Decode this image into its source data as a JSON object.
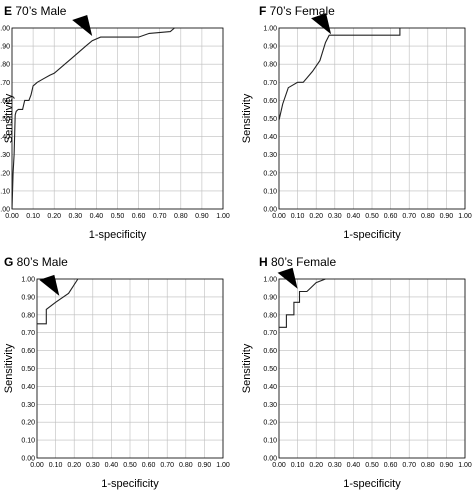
{
  "chart_data": [
    {
      "panel": "E",
      "title": "70’s Male",
      "type": "line",
      "xlabel": "1-specificity",
      "ylabel": "Sensitivity",
      "xlim": [
        0,
        1
      ],
      "ylim": [
        0,
        1
      ],
      "xticks": [
        "0.00",
        "0.10",
        "0.20",
        "0.30",
        "0.40",
        "0.50",
        "0.60",
        "0.70",
        "0.80",
        "0.90",
        "1.00"
      ],
      "yticks": [
        "0.00",
        "0.10",
        "0.20",
        "0.30",
        "0.40",
        "0.50",
        "0.60",
        "0.70",
        "0.80",
        "0.90",
        "1.00"
      ],
      "grid": true,
      "x": [
        0,
        0.005,
        0.01,
        0.015,
        0.02,
        0.03,
        0.05,
        0.06,
        0.08,
        0.09,
        0.1,
        0.12,
        0.15,
        0.18,
        0.2,
        0.25,
        0.28,
        0.3,
        0.35,
        0.38,
        0.42,
        0.5,
        0.55,
        0.6,
        0.65,
        0.75,
        0.77
      ],
      "y": [
        0,
        0.2,
        0.3,
        0.52,
        0.54,
        0.55,
        0.55,
        0.6,
        0.6,
        0.63,
        0.68,
        0.7,
        0.72,
        0.74,
        0.75,
        0.8,
        0.83,
        0.85,
        0.9,
        0.93,
        0.95,
        0.95,
        0.95,
        0.95,
        0.97,
        0.98,
        1.0
      ],
      "annotation": {
        "type": "arrow",
        "x": 0.38,
        "y": 0.95
      }
    },
    {
      "panel": "F",
      "title": "70’s Female",
      "type": "line",
      "xlabel": "1-specificity",
      "ylabel": "Sensitivity",
      "xlim": [
        0,
        1
      ],
      "ylim": [
        0,
        1
      ],
      "xticks": [
        "0.00",
        "0.10",
        "0.20",
        "0.30",
        "0.40",
        "0.50",
        "0.60",
        "0.70",
        "0.80",
        "0.90",
        "1.00"
      ],
      "yticks": [
        "0.00",
        "0.10",
        "0.20",
        "0.30",
        "0.40",
        "0.50",
        "0.60",
        "0.70",
        "0.80",
        "0.90",
        "1.00"
      ],
      "grid": true,
      "x": [
        0,
        0.02,
        0.05,
        0.1,
        0.13,
        0.18,
        0.22,
        0.25,
        0.27,
        0.28,
        0.3,
        0.65,
        0.65
      ],
      "y": [
        0.49,
        0.58,
        0.67,
        0.7,
        0.7,
        0.76,
        0.82,
        0.92,
        0.96,
        0.96,
        0.96,
        0.96,
        1.0
      ],
      "annotation": {
        "type": "arrow",
        "x": 0.28,
        "y": 0.96
      }
    },
    {
      "panel": "G",
      "title": "80’s Male",
      "type": "line",
      "xlabel": "1-specificity",
      "ylabel": "Sensitivity",
      "xlim": [
        0,
        1
      ],
      "ylim": [
        0,
        1
      ],
      "xticks": [
        "0.00",
        "0.10",
        "0.20",
        "0.30",
        "0.40",
        "0.50",
        "0.60",
        "0.70",
        "0.80",
        "0.90",
        "1.00"
      ],
      "yticks": [
        "0.00",
        "0.10",
        "0.20",
        "0.30",
        "0.40",
        "0.50",
        "0.60",
        "0.70",
        "0.80",
        "0.90",
        "1.00"
      ],
      "grid": true,
      "x": [
        0,
        0.05,
        0.05,
        0.1,
        0.17,
        0.22
      ],
      "y": [
        0.75,
        0.75,
        0.83,
        0.87,
        0.92,
        1.0
      ],
      "annotation": {
        "type": "arrow",
        "x": 0.12,
        "y": 0.9
      }
    },
    {
      "panel": "H",
      "title": "80’s Female",
      "type": "line",
      "xlabel": "1-specificity",
      "ylabel": "Sensitivity",
      "xlim": [
        0,
        1
      ],
      "ylim": [
        0,
        1
      ],
      "xticks": [
        "0.00",
        "0.10",
        "0.20",
        "0.30",
        "0.40",
        "0.50",
        "0.60",
        "0.70",
        "0.80",
        "0.90",
        "1.00"
      ],
      "yticks": [
        "0.00",
        "0.10",
        "0.20",
        "0.30",
        "0.40",
        "0.50",
        "0.60",
        "0.70",
        "0.80",
        "0.90",
        "1.00"
      ],
      "grid": true,
      "x": [
        0,
        0.04,
        0.04,
        0.08,
        0.08,
        0.11,
        0.11,
        0.15,
        0.17,
        0.2,
        0.25
      ],
      "y": [
        0.73,
        0.73,
        0.8,
        0.8,
        0.87,
        0.87,
        0.93,
        0.93,
        0.95,
        0.98,
        1.0
      ],
      "annotation": {
        "type": "arrow",
        "x": 0.1,
        "y": 0.94
      }
    }
  ]
}
